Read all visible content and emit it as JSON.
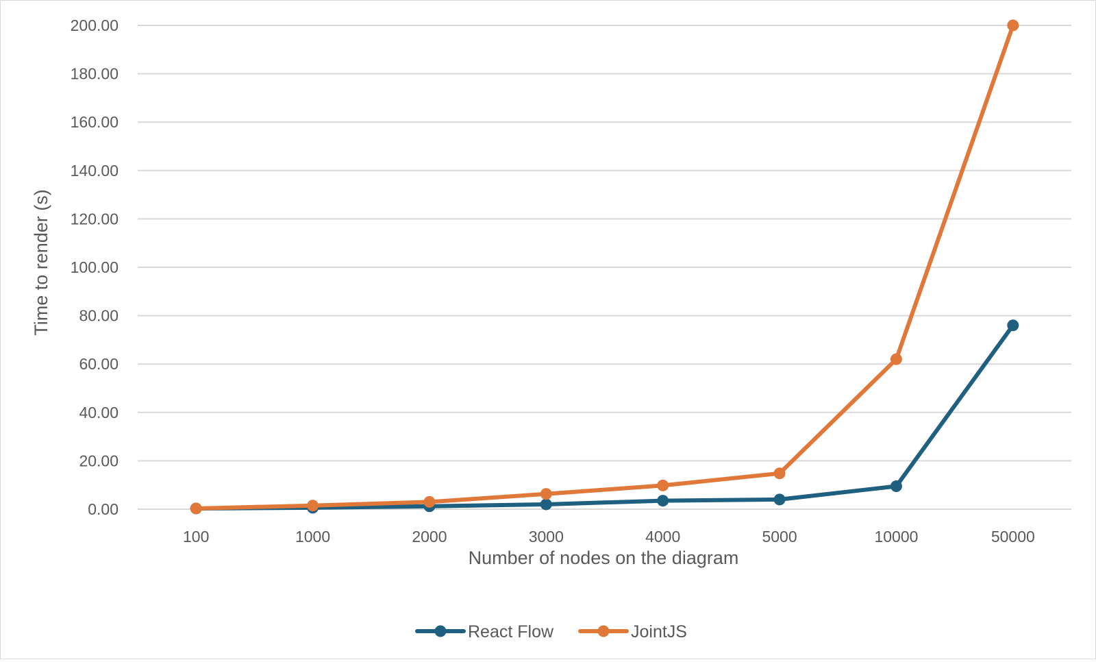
{
  "chart_data": {
    "type": "line",
    "title": "",
    "xlabel": "Number of nodes on the diagram",
    "ylabel": "Time to render (s)",
    "categories": [
      "100",
      "1000",
      "2000",
      "3000",
      "4000",
      "5000",
      "10000",
      "50000"
    ],
    "series": [
      {
        "name": "React Flow",
        "color": "#1f5f7f",
        "values": [
          0.3,
          0.6,
          1.2,
          2.0,
          3.5,
          4.0,
          9.5,
          76.0
        ]
      },
      {
        "name": "JointJS",
        "color": "#e0783a",
        "values": [
          0.3,
          1.5,
          3.0,
          6.3,
          9.8,
          14.8,
          62.0,
          200.0
        ]
      }
    ],
    "ylim": [
      0,
      200
    ],
    "yticks": [
      "0.00",
      "20.00",
      "40.00",
      "60.00",
      "80.00",
      "100.00",
      "120.00",
      "140.00",
      "160.00",
      "180.00",
      "200.00"
    ],
    "grid": true,
    "legend_position": "bottom"
  }
}
